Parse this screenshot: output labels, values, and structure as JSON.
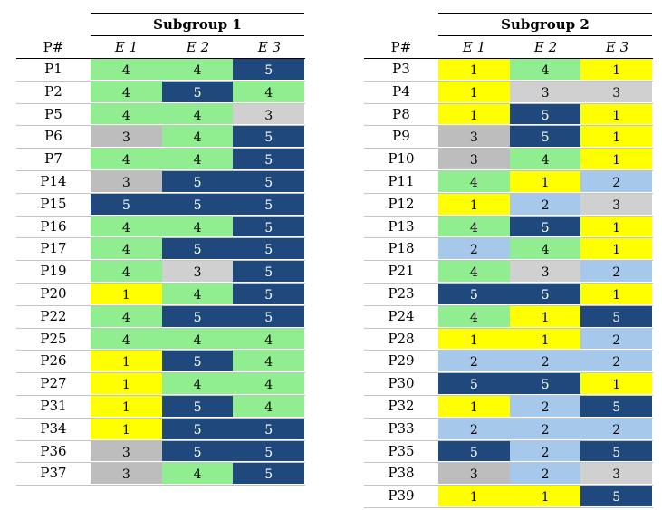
{
  "colors": {
    "1": "#ffff00",
    "2": "#a6c8ea",
    "3": "#d0d0d0",
    "4": "#90ee90",
    "5": "#1f497d"
  },
  "tables": [
    {
      "title": "Subgroup 1",
      "pcol": "P#",
      "cols": [
        "E 1",
        "E 2",
        "E 3"
      ],
      "rows": [
        {
          "p": "P1",
          "v": [
            4,
            4,
            5
          ]
        },
        {
          "p": "P2",
          "v": [
            4,
            5,
            4
          ]
        },
        {
          "p": "P5",
          "v": [
            4,
            4,
            3
          ]
        },
        {
          "p": "P6",
          "v": [
            3,
            4,
            5
          ]
        },
        {
          "p": "P7",
          "v": [
            4,
            4,
            5
          ]
        },
        {
          "p": "P14",
          "v": [
            3,
            5,
            5
          ]
        },
        {
          "p": "P15",
          "v": [
            5,
            5,
            5
          ]
        },
        {
          "p": "P16",
          "v": [
            4,
            4,
            5
          ]
        },
        {
          "p": "P17",
          "v": [
            4,
            5,
            5
          ]
        },
        {
          "p": "P19",
          "v": [
            4,
            3,
            5
          ]
        },
        {
          "p": "P20",
          "v": [
            1,
            4,
            5
          ]
        },
        {
          "p": "P22",
          "v": [
            4,
            5,
            5
          ]
        },
        {
          "p": "P25",
          "v": [
            4,
            4,
            4
          ]
        },
        {
          "p": "P26",
          "v": [
            1,
            5,
            4
          ]
        },
        {
          "p": "P27",
          "v": [
            1,
            4,
            4
          ]
        },
        {
          "p": "P31",
          "v": [
            1,
            5,
            4
          ]
        },
        {
          "p": "P34",
          "v": [
            1,
            5,
            5
          ]
        },
        {
          "p": "P36",
          "v": [
            3,
            5,
            5
          ]
        },
        {
          "p": "P37",
          "v": [
            3,
            4,
            5
          ]
        }
      ]
    },
    {
      "title": "Subgroup 2",
      "pcol": "P#",
      "cols": [
        "E 1",
        "E 2",
        "E 3"
      ],
      "rows": [
        {
          "p": "P3",
          "v": [
            1,
            4,
            1
          ]
        },
        {
          "p": "P4",
          "v": [
            1,
            3,
            3
          ]
        },
        {
          "p": "P8",
          "v": [
            1,
            5,
            1
          ]
        },
        {
          "p": "P9",
          "v": [
            3,
            5,
            1
          ]
        },
        {
          "p": "P10",
          "v": [
            3,
            4,
            1
          ]
        },
        {
          "p": "P11",
          "v": [
            4,
            1,
            2
          ]
        },
        {
          "p": "P12",
          "v": [
            1,
            2,
            3
          ]
        },
        {
          "p": "P13",
          "v": [
            4,
            5,
            1
          ]
        },
        {
          "p": "P18",
          "v": [
            2,
            4,
            1
          ]
        },
        {
          "p": "P21",
          "v": [
            4,
            3,
            2
          ]
        },
        {
          "p": "P23",
          "v": [
            5,
            5,
            1
          ]
        },
        {
          "p": "P24",
          "v": [
            4,
            1,
            5
          ]
        },
        {
          "p": "P28",
          "v": [
            1,
            1,
            2
          ]
        },
        {
          "p": "P29",
          "v": [
            2,
            2,
            2
          ]
        },
        {
          "p": "P30",
          "v": [
            5,
            5,
            1
          ]
        },
        {
          "p": "P32",
          "v": [
            1,
            2,
            5
          ]
        },
        {
          "p": "P33",
          "v": [
            2,
            2,
            2
          ]
        },
        {
          "p": "P35",
          "v": [
            5,
            2,
            5
          ]
        },
        {
          "p": "P38",
          "v": [
            3,
            2,
            3
          ]
        },
        {
          "p": "P39",
          "v": [
            1,
            1,
            5
          ]
        }
      ]
    }
  ]
}
